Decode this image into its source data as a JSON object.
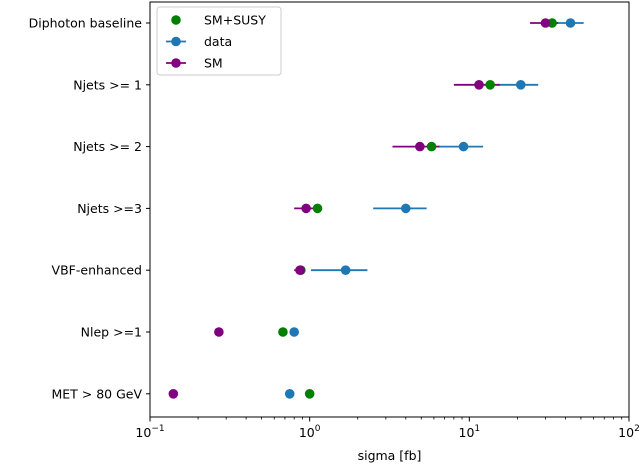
{
  "chart_data": {
    "type": "scatter",
    "title": "",
    "xlabel": "sigma [fb]",
    "ylabel": "",
    "xscale": "log",
    "xlim": [
      0.1,
      100
    ],
    "x_ticks": [
      {
        "base": "10",
        "exp": "−1",
        "value": 0.1
      },
      {
        "base": "10",
        "exp": "0",
        "value": 1
      },
      {
        "base": "10",
        "exp": "1",
        "value": 10
      },
      {
        "base": "10",
        "exp": "2",
        "value": 100
      }
    ],
    "categories": [
      "Diphoton baseline",
      "Njets >= 1",
      "Njets >= 2",
      "Njets >=3",
      "VBF-enhanced",
      "Nlep >=1",
      "MET > 80 GeV"
    ],
    "grid": false,
    "legend_position": "top-left",
    "series": [
      {
        "name": "SM+SUSY",
        "color": "#008000",
        "values": [
          33,
          13.5,
          5.8,
          1.12,
          0.88,
          0.68,
          1.0
        ],
        "err_low": [
          null,
          null,
          null,
          null,
          null,
          null,
          null
        ],
        "err_high": [
          null,
          null,
          null,
          null,
          null,
          null,
          null
        ]
      },
      {
        "name": "data",
        "color": "#1f77b4",
        "values": [
          43,
          21,
          9.2,
          4.0,
          1.68,
          0.8,
          0.75
        ],
        "err_low": [
          30,
          15,
          6.3,
          2.5,
          1.02,
          null,
          null
        ],
        "err_high": [
          52,
          27,
          12.2,
          5.4,
          2.3,
          null,
          null
        ]
      },
      {
        "name": "SM",
        "color": "#800080",
        "values": [
          30,
          11.5,
          4.9,
          0.95,
          0.87,
          0.27,
          0.14
        ],
        "err_low": [
          24,
          8.0,
          3.3,
          0.8,
          0.8,
          null,
          null
        ],
        "err_high": [
          36,
          15.5,
          6.5,
          1.1,
          0.94,
          null,
          null
        ]
      }
    ]
  }
}
